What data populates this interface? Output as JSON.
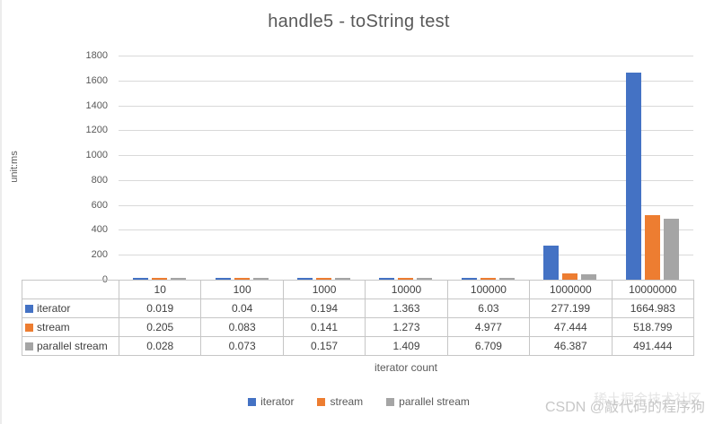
{
  "chart": {
    "title": "handle5 - toString test",
    "ylabel": "unit:ms",
    "xlabel": "iterator count"
  },
  "chart_data": {
    "type": "bar",
    "title": "handle5 - toString test",
    "categories": [
      "10",
      "100",
      "1000",
      "10000",
      "100000",
      "1000000",
      "10000000"
    ],
    "series": [
      {
        "name": "iterator",
        "color": "#4472C4",
        "values": [
          0.019,
          0.04,
          0.194,
          1.363,
          6.03,
          277.199,
          1664.983
        ]
      },
      {
        "name": "stream",
        "color": "#ED7D31",
        "values": [
          0.205,
          0.083,
          0.141,
          1.273,
          4.977,
          47.444,
          518.799
        ]
      },
      {
        "name": "parallel stream",
        "color": "#A5A5A5",
        "values": [
          0.028,
          0.073,
          0.157,
          1.409,
          6.709,
          46.387,
          491.444
        ]
      }
    ],
    "xlabel": "iterator count",
    "ylabel": "unit:ms",
    "ylim": [
      0,
      1800
    ],
    "ytick_step": 200,
    "grid": true,
    "legend_position": "bottom",
    "data_table": true
  },
  "legend": {
    "items": [
      "iterator",
      "stream",
      "parallel stream"
    ]
  },
  "watermark": {
    "primary": "CSDN @敲代码的程序狗",
    "secondary": "稀土掘金技术社区"
  },
  "colors": {
    "iterator": "#4472C4",
    "stream": "#ED7D31",
    "parallel_stream": "#A5A5A5",
    "gridline": "#d9d9d9",
    "text": "#595959"
  }
}
